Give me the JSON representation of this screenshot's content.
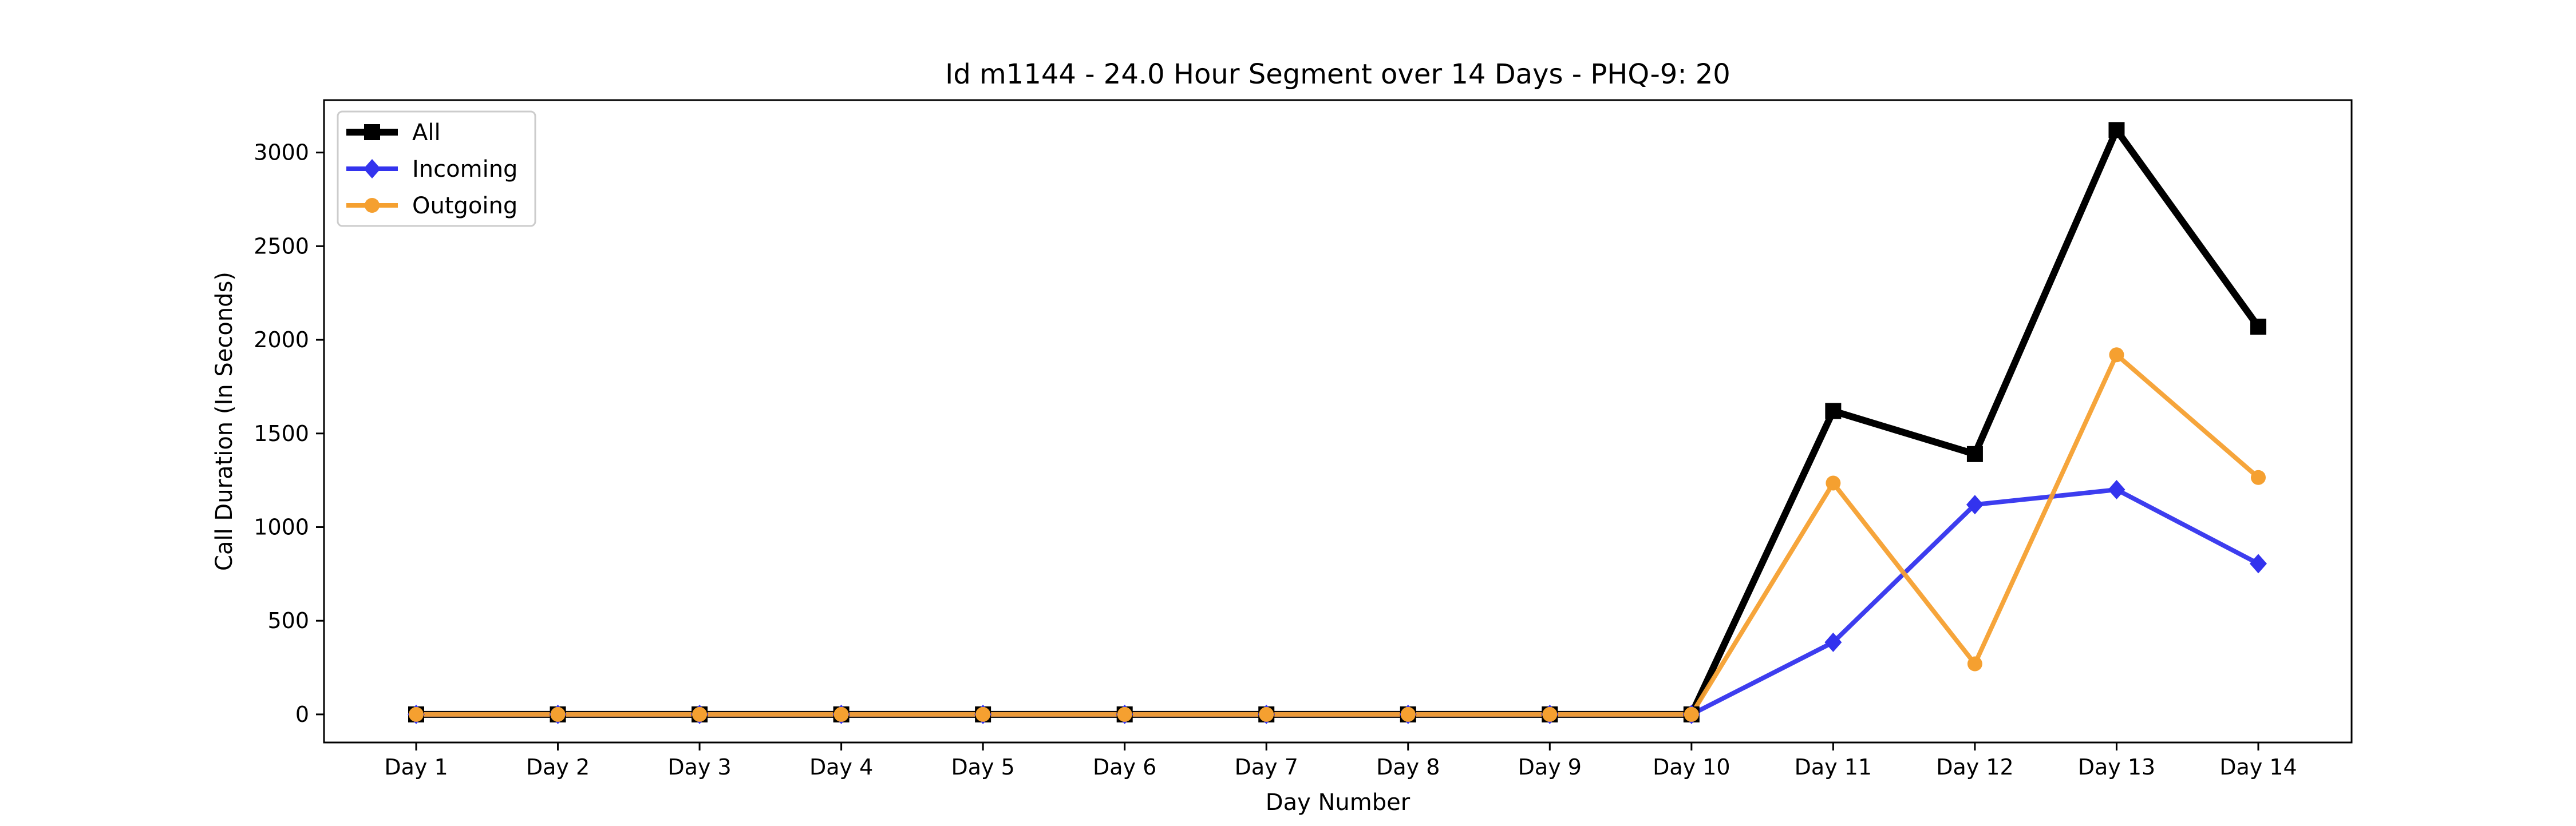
{
  "chart_data": {
    "type": "line",
    "title": "Id m1144 - 24.0 Hour Segment over 14 Days - PHQ-9: 20",
    "xlabel": "Day Number",
    "ylabel": "Call Duration (In Seconds)",
    "categories": [
      "Day 1",
      "Day 2",
      "Day 3",
      "Day 4",
      "Day 5",
      "Day 6",
      "Day 7",
      "Day 8",
      "Day 9",
      "Day 10",
      "Day 11",
      "Day 12",
      "Day 13",
      "Day 14"
    ],
    "ylim": [
      -150,
      3280
    ],
    "yticks": [
      0,
      500,
      1000,
      1500,
      2000,
      2500,
      3000
    ],
    "grid": false,
    "legend_position": "top-left",
    "series": [
      {
        "name": "All",
        "color": "#000000",
        "marker": "square",
        "values": [
          0,
          0,
          0,
          0,
          0,
          0,
          0,
          0,
          0,
          0,
          1620,
          1390,
          3120,
          2070
        ]
      },
      {
        "name": "Incoming",
        "color": "#3333ee",
        "marker": "diamond",
        "values": [
          0,
          0,
          0,
          0,
          0,
          0,
          0,
          0,
          0,
          0,
          385,
          1120,
          1200,
          805
        ]
      },
      {
        "name": "Outgoing",
        "color": "#f5a030",
        "marker": "circle",
        "values": [
          0,
          0,
          0,
          0,
          0,
          0,
          0,
          0,
          0,
          0,
          1235,
          270,
          1920,
          1265
        ]
      }
    ]
  }
}
